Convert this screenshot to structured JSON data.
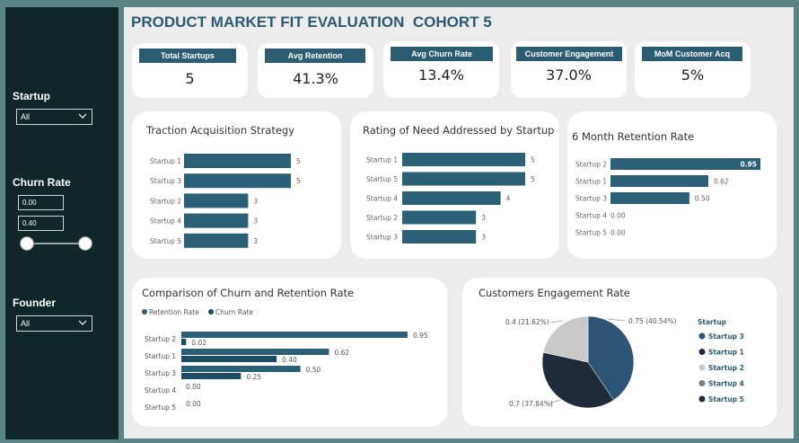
{
  "report": {
    "title": "PRODUCT MARKET FIT EVALUATION  COHORT 5"
  },
  "filters": {
    "startup": {
      "label": "Startup",
      "value": "All"
    },
    "churn_rate": {
      "label": "Churn Rate",
      "min": "0.00",
      "max": "0.40",
      "range_low": 0.0,
      "range_high": 0.4
    },
    "founder": {
      "label": "Founder",
      "value": "All"
    }
  },
  "kpis": [
    {
      "label": "Total Startups",
      "value": "5"
    },
    {
      "label": "Avg Retention",
      "value": "41.3%"
    },
    {
      "label": "Avg Churn Rate",
      "value": "13.4%"
    },
    {
      "label": "Customer Engagement",
      "value": "37.0%"
    },
    {
      "label": "MoM Customer Acq",
      "value": "5%"
    }
  ],
  "colors": {
    "bar": "#2b5f75",
    "bar_dark": "#1d4b63",
    "title": "#2b5a72",
    "pie_startup3": "#2e5475",
    "pie_startup1": "#1f2b3b",
    "pie_startup2": "#c9c9c9",
    "pie_startup4": "#7f7f7f",
    "pie_startup5": "#252f3c"
  },
  "chart_data": [
    {
      "type": "bar",
      "orientation": "horizontal",
      "title": "Traction Acquisition Strategy",
      "categories": [
        "Startup 1",
        "Startup 3",
        "Startup 2",
        "Startup 4",
        "Startup 5"
      ],
      "values": [
        5,
        5,
        3,
        3,
        3
      ],
      "labels": [
        "5",
        "5",
        "3",
        "3",
        "3"
      ],
      "xlim": [
        0,
        5
      ]
    },
    {
      "type": "bar",
      "orientation": "horizontal",
      "title": "Rating of Need Addressed by Startup",
      "categories": [
        "Startup 1",
        "Startup 5",
        "Startup 4",
        "Startup 2",
        "Startup 3"
      ],
      "values": [
        5,
        5,
        4,
        3,
        3
      ],
      "labels": [
        "5",
        "5",
        "4",
        "3",
        "3"
      ],
      "xlim": [
        0,
        5
      ]
    },
    {
      "type": "bar",
      "orientation": "horizontal",
      "title": "6 Month Retention Rate",
      "categories": [
        "Startup 2",
        "Startup 1",
        "Startup 3",
        "Startup 4",
        "Startup 5"
      ],
      "values": [
        0.95,
        0.62,
        0.5,
        0,
        0
      ],
      "labels": [
        "0.95",
        "0.62",
        "0.50",
        "0.00",
        "0.00"
      ],
      "xlim": [
        0,
        0.95
      ]
    },
    {
      "type": "bar",
      "orientation": "horizontal",
      "title": "Comparison of Churn and Retention Rate",
      "legend": [
        "Retention Rate",
        "Churn Rate"
      ],
      "categories": [
        "Startup 2",
        "Startup 1",
        "Startup 3",
        "Startup 4",
        "Startup 5"
      ],
      "series": [
        {
          "name": "Retention Rate",
          "values": [
            0.95,
            0.62,
            0.5,
            0,
            0
          ],
          "labels": [
            "0.95",
            "0.62",
            "0.50",
            "0.00",
            "0.00"
          ]
        },
        {
          "name": "Churn Rate",
          "values": [
            0.02,
            0.4,
            0.25,
            null,
            null
          ],
          "labels": [
            "0.02",
            "0.40",
            "0.25",
            "",
            ""
          ]
        }
      ],
      "xlim": [
        0,
        0.95
      ]
    },
    {
      "type": "pie",
      "title": "Customers Engagement Rate",
      "legend_title": "Startup",
      "legend": [
        "Startup 3",
        "Startup 1",
        "Startup 2",
        "Startup 4",
        "Startup 5"
      ],
      "slices": [
        {
          "name": "Startup 3",
          "value": 0.75,
          "percent": 40.54,
          "label": "0.75 (40.54%)"
        },
        {
          "name": "Startup 1",
          "value": 0.7,
          "percent": 37.84,
          "label": "0.7 (37.84%)"
        },
        {
          "name": "Startup 2",
          "value": 0.4,
          "percent": 21.62,
          "label": "0.4 (21.62%)"
        }
      ]
    }
  ]
}
